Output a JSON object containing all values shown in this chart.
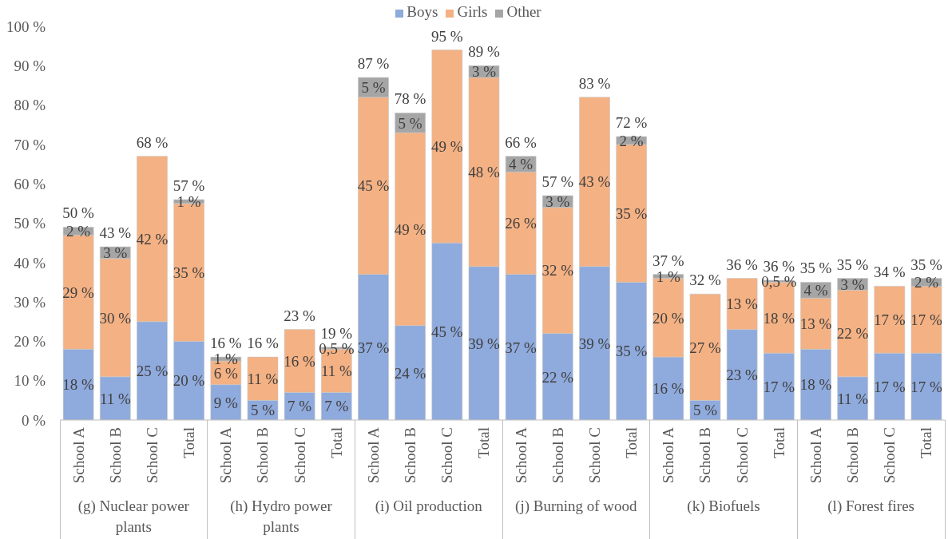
{
  "chart_data": {
    "type": "bar",
    "stacked": true,
    "legend": "top",
    "categories": [
      "School A",
      "School B",
      "School C",
      "Total",
      "School A",
      "School B",
      "School C",
      "Total",
      "School A",
      "School B",
      "School C",
      "Total",
      "School A",
      "School B",
      "School C",
      "Total",
      "School A",
      "School B",
      "School C",
      "Total",
      "School A",
      "School B",
      "School C",
      "Total"
    ],
    "series": [
      {
        "name": "Boys",
        "color": "#8faadc",
        "values": [
          18,
          11,
          25,
          20,
          9,
          5,
          7,
          7,
          37,
          24,
          45,
          39,
          37,
          22,
          39,
          35,
          16,
          5,
          23,
          17,
          18,
          11,
          17,
          17
        ],
        "value_labels": [
          "18 %",
          "11 %",
          "25 %",
          "20 %",
          "9 %",
          "5 %",
          "7 %",
          "7 %",
          "37 %",
          "24 %",
          "45 %",
          "39 %",
          "37 %",
          "22 %",
          "39 %",
          "35 %",
          "16 %",
          "5 %",
          "23 %",
          "17 %",
          "18 %",
          "11 %",
          "17 %",
          "17 %"
        ]
      },
      {
        "name": "Girls",
        "color": "#f4b183",
        "values": [
          29,
          30,
          42,
          35,
          6,
          11,
          16,
          11,
          45,
          49,
          49,
          48,
          26,
          32,
          43,
          35,
          20,
          27,
          13,
          18,
          13,
          22,
          17,
          17
        ],
        "value_labels": [
          "29 %",
          "30 %",
          "42 %",
          "35 %",
          "6 %",
          "11 %",
          "16 %",
          "11 %",
          "45 %",
          "49 %",
          "49 %",
          "48 %",
          "26 %",
          "32 %",
          "43 %",
          "35 %",
          "20 %",
          "27 %",
          "13 %",
          "18 %",
          "13 %",
          "22 %",
          "17 %",
          "17 %"
        ]
      },
      {
        "name": "Other",
        "color": "#a5a5a5",
        "values": [
          2,
          3,
          null,
          1,
          1,
          null,
          null,
          0.5,
          5,
          5,
          null,
          3,
          4,
          3,
          null,
          2,
          1,
          null,
          null,
          0.5,
          4,
          3,
          null,
          2
        ],
        "value_labels": [
          "2 %",
          "3 %",
          null,
          "1 %",
          "1 %",
          null,
          null,
          "0,5 %",
          "5 %",
          "5 %",
          null,
          "3 %",
          "4 %",
          "3 %",
          null,
          "2 %",
          "1 %",
          null,
          null,
          "0,5 %",
          "4 %",
          "3 %",
          null,
          "2 %"
        ]
      }
    ],
    "totals": [
      "50 %",
      "43 %",
      "68 %",
      "57 %",
      "16 %",
      "16 %",
      "23 %",
      "19 %",
      "87 %",
      "78 %",
      "95 %",
      "89 %",
      "66 %",
      "57 %",
      "83 %",
      "72 %",
      "37 %",
      "32 %",
      "36 %",
      "36 %",
      "35 %",
      "35 %",
      "34 %",
      "35 %"
    ],
    "ylim": [
      0,
      100
    ],
    "yticks": [
      {
        "value": 0,
        "label": "0 %"
      },
      {
        "value": 10,
        "label": "10 %"
      },
      {
        "value": 20,
        "label": "20 %"
      },
      {
        "value": 30,
        "label": "30 %"
      },
      {
        "value": 40,
        "label": "40 %"
      },
      {
        "value": 50,
        "label": "50 %"
      },
      {
        "value": 60,
        "label": "60 %"
      },
      {
        "value": 70,
        "label": "70 %"
      },
      {
        "value": 80,
        "label": "80 %"
      },
      {
        "value": 90,
        "label": "90 %"
      },
      {
        "value": 100,
        "label": "100 %"
      }
    ],
    "annotations": [
      "(g) Nuclear power plants",
      "(h) Hydro power plants",
      "(i) Oil production",
      "(j) Burning of wood",
      "(k) Biofuels",
      "(l) Forest fires"
    ]
  }
}
